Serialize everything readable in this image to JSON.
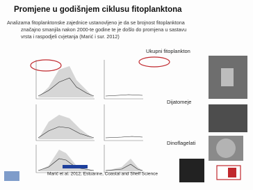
{
  "slide": {
    "title": "Promjene u godišnjem ciklusu fitoplanktona",
    "paragraph": [
      "Analizama fitoplanktonske zajednice ustanovljeno je da se brojnost fitoplanktona",
      "značajno smanjila nakon 2000-te godine te je došlo do promjena u sastavu",
      "vrsta i raspodjeli cvjetanja (Marić i sur. 2012)"
    ],
    "labels": [
      "Ukupni fitoplankton",
      "Dijatomeje",
      "Dinoflagelati"
    ],
    "citation": "Marić et al. 2012, Estuarine, Coastal and Shelf Science"
  }
}
